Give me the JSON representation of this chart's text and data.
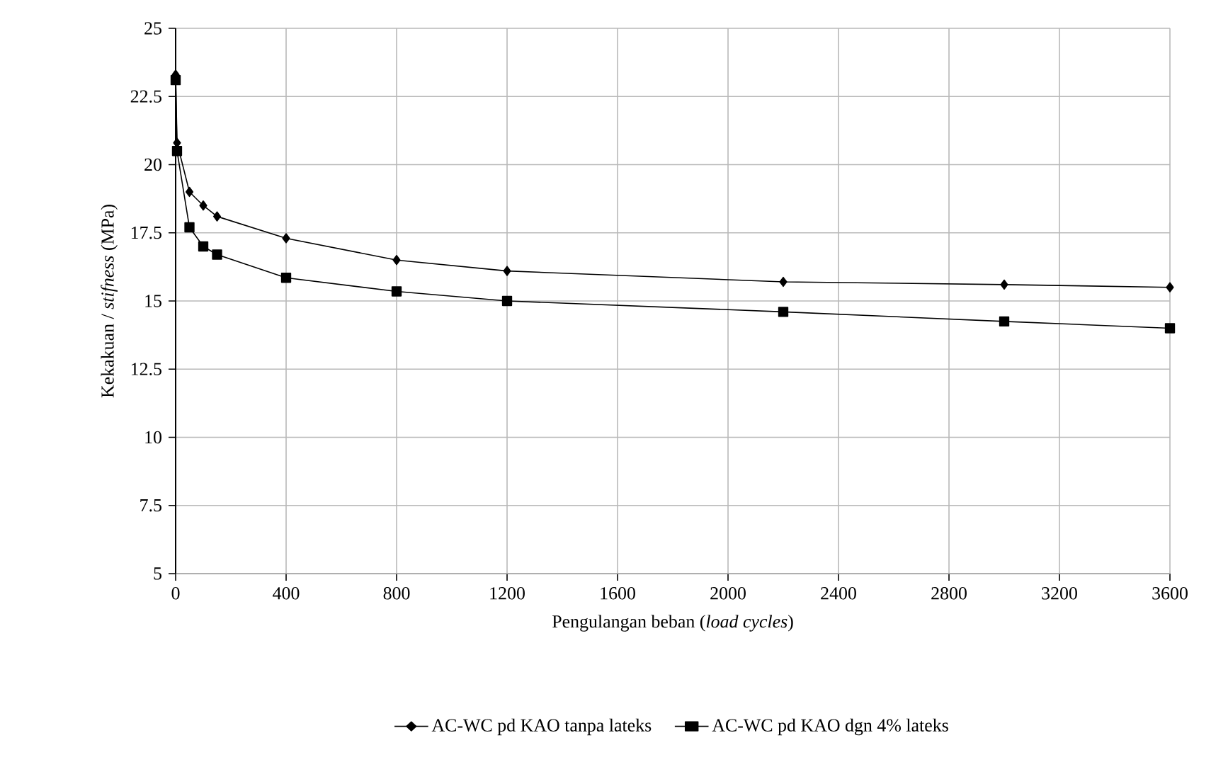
{
  "chart_data": {
    "type": "line",
    "xlabel": "Pengulangan beban (*load cycles*)",
    "ylabel": "Kekakuan / *stifness* (MPa)",
    "xlim": [
      0,
      3600
    ],
    "xticks": [
      0,
      400,
      800,
      1200,
      1600,
      2000,
      2400,
      2800,
      3200,
      3600
    ],
    "ylim": [
      5,
      25
    ],
    "yticks": [
      5,
      7.5,
      10,
      12.5,
      15,
      17.5,
      20,
      22.5,
      25
    ],
    "grid": true,
    "legend": "bottom",
    "series": [
      {
        "name": "AC-WC pd KAO tanpa lateks",
        "color": "#000000",
        "marker": "diamond",
        "x": [
          0,
          5,
          50,
          100,
          150,
          400,
          800,
          1200,
          2200,
          3000,
          3600
        ],
        "values": [
          23.3,
          20.8,
          19.0,
          18.5,
          18.1,
          17.3,
          16.5,
          16.1,
          15.7,
          15.6,
          15.5
        ]
      },
      {
        "name": "AC-WC pd KAO dgn 4% lateks",
        "color": "#000000",
        "marker": "square",
        "x": [
          0,
          5,
          50,
          100,
          150,
          400,
          800,
          1200,
          2200,
          3000,
          3600
        ],
        "values": [
          23.1,
          20.5,
          17.7,
          17.0,
          16.7,
          15.85,
          15.35,
          15.0,
          14.6,
          14.25,
          14.0
        ]
      }
    ]
  }
}
